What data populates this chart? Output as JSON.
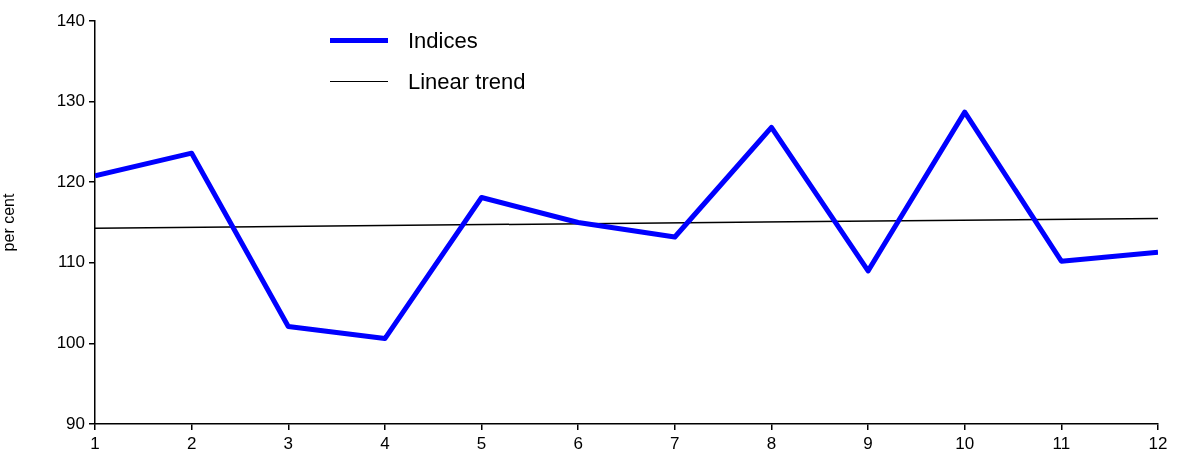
{
  "chart_data": {
    "type": "line",
    "ylabel": "per cent",
    "x": [
      1,
      2,
      3,
      4,
      5,
      6,
      7,
      8,
      9,
      10,
      11,
      12
    ],
    "xlim": [
      1,
      12
    ],
    "xticks": [
      1,
      2,
      3,
      4,
      5,
      6,
      7,
      8,
      9,
      10,
      11,
      12
    ],
    "ylim": [
      90,
      140
    ],
    "yticks": [
      90,
      100,
      110,
      120,
      130,
      140
    ],
    "grid": false,
    "legend": "top left",
    "series": [
      {
        "name": "Indices",
        "color": "#0000ff",
        "values": [
          120.8,
          123.6,
          102.1,
          100.6,
          118.1,
          115.0,
          113.2,
          126.8,
          109.0,
          128.7,
          110.2,
          111.3
        ]
      },
      {
        "name": "Linear trend",
        "color": "#000000",
        "type": "line",
        "x": [
          1,
          12
        ],
        "values": [
          114.3,
          115.5
        ]
      }
    ]
  }
}
